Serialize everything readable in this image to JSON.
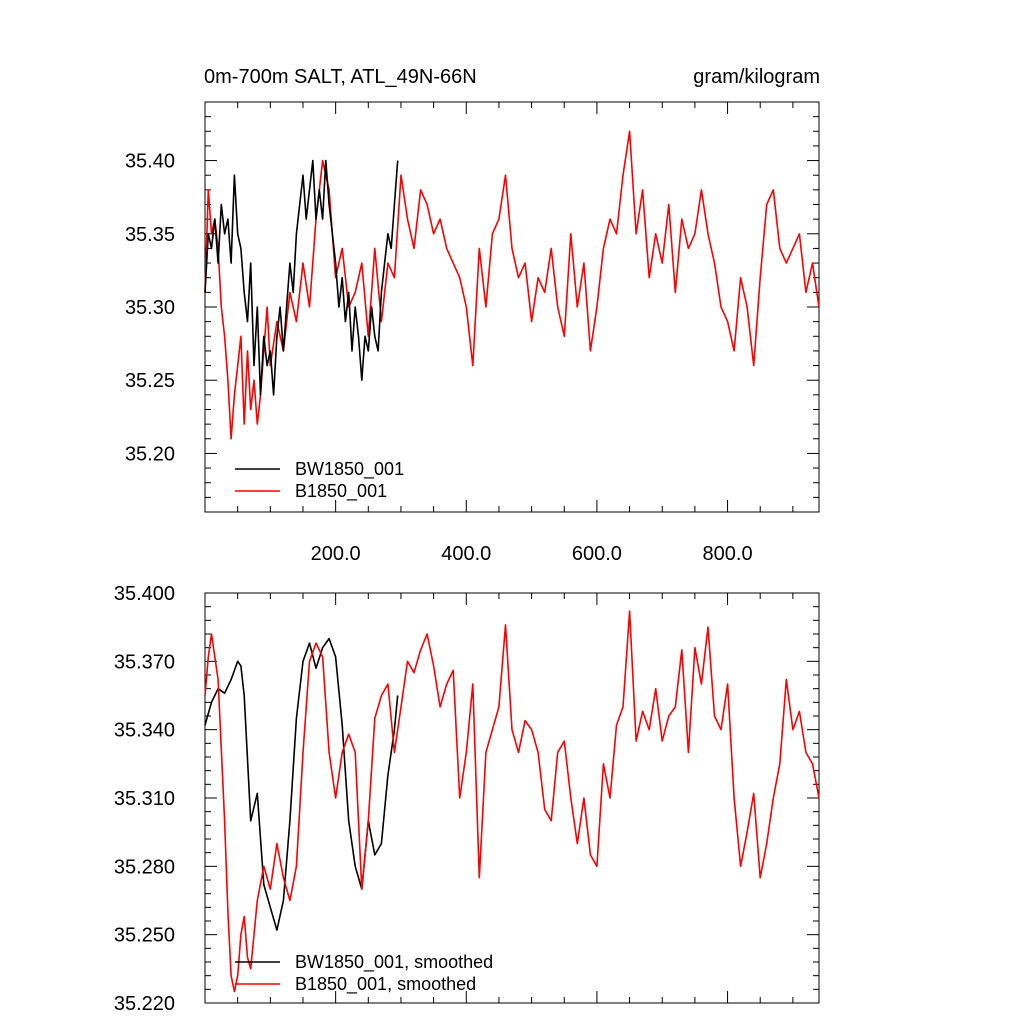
{
  "chart_data": [
    {
      "type": "line",
      "title_left": "0m-700m SALT, ATL_49N-66N",
      "title_right": "gram/kilogram",
      "xlim": [
        0,
        940
      ],
      "ylim": [
        35.16,
        35.44
      ],
      "x_ticks": [
        "200.0",
        "400.0",
        "600.0",
        "800.0"
      ],
      "x_tick_values": [
        200,
        400,
        600,
        800
      ],
      "y_ticks": [
        "35.20",
        "35.25",
        "35.30",
        "35.35",
        "35.40"
      ],
      "y_tick_values": [
        35.2,
        35.25,
        35.3,
        35.35,
        35.4
      ],
      "legend_position": "bottom-left",
      "series": [
        {
          "name": "BW1850_001",
          "color": "#000000",
          "x": [
            0,
            5,
            10,
            15,
            20,
            25,
            30,
            35,
            40,
            45,
            50,
            55,
            60,
            65,
            70,
            75,
            80,
            85,
            90,
            95,
            100,
            105,
            110,
            115,
            120,
            125,
            130,
            135,
            140,
            145,
            150,
            155,
            160,
            165,
            170,
            175,
            180,
            185,
            190,
            195,
            200,
            205,
            210,
            215,
            220,
            225,
            230,
            235,
            240,
            245,
            250,
            255,
            260,
            265,
            270,
            275,
            280,
            285,
            290,
            295
          ],
          "y": [
            35.31,
            35.35,
            35.34,
            35.36,
            35.33,
            35.37,
            35.35,
            35.36,
            35.33,
            35.39,
            35.35,
            35.34,
            35.31,
            35.29,
            35.33,
            35.26,
            35.3,
            35.24,
            35.28,
            35.26,
            35.27,
            35.24,
            35.28,
            35.3,
            35.27,
            35.3,
            35.33,
            35.31,
            35.35,
            35.37,
            35.39,
            35.36,
            35.38,
            35.4,
            35.36,
            35.38,
            35.36,
            35.4,
            35.37,
            35.35,
            35.33,
            35.3,
            35.32,
            35.29,
            35.31,
            35.27,
            35.3,
            35.28,
            35.25,
            35.28,
            35.27,
            35.3,
            35.28,
            35.27,
            35.31,
            35.33,
            35.35,
            35.34,
            35.37,
            35.4
          ]
        },
        {
          "name": "B1850_001",
          "color": "#ff0000",
          "x": [
            0,
            5,
            10,
            15,
            20,
            25,
            30,
            35,
            40,
            45,
            50,
            55,
            60,
            65,
            70,
            75,
            80,
            85,
            90,
            95,
            100,
            110,
            120,
            130,
            140,
            150,
            160,
            170,
            180,
            190,
            200,
            210,
            220,
            230,
            240,
            250,
            260,
            270,
            280,
            290,
            300,
            310,
            320,
            330,
            340,
            350,
            360,
            370,
            380,
            390,
            400,
            410,
            420,
            430,
            440,
            450,
            460,
            470,
            480,
            490,
            500,
            510,
            520,
            530,
            540,
            550,
            560,
            570,
            580,
            590,
            600,
            610,
            620,
            630,
            640,
            650,
            660,
            670,
            680,
            690,
            700,
            710,
            720,
            730,
            740,
            750,
            760,
            770,
            780,
            790,
            800,
            810,
            820,
            830,
            840,
            850,
            860,
            870,
            880,
            890,
            900,
            910,
            920,
            930,
            940
          ],
          "y": [
            35.31,
            35.38,
            35.35,
            35.36,
            35.34,
            35.3,
            35.28,
            35.25,
            35.21,
            35.24,
            35.26,
            35.28,
            35.22,
            35.27,
            35.23,
            35.25,
            35.22,
            35.24,
            35.27,
            35.3,
            35.26,
            35.29,
            35.27,
            35.31,
            35.29,
            35.33,
            35.3,
            35.36,
            35.4,
            35.38,
            35.32,
            35.34,
            35.3,
            35.31,
            35.33,
            35.28,
            35.34,
            35.29,
            35.33,
            35.32,
            35.39,
            35.36,
            35.34,
            35.38,
            35.37,
            35.35,
            35.36,
            35.34,
            35.33,
            35.32,
            35.3,
            35.26,
            35.34,
            35.3,
            35.35,
            35.36,
            35.39,
            35.34,
            35.32,
            35.33,
            35.29,
            35.32,
            35.31,
            35.34,
            35.3,
            35.28,
            35.35,
            35.3,
            35.33,
            35.27,
            35.3,
            35.34,
            35.36,
            35.35,
            35.39,
            35.42,
            35.35,
            35.38,
            35.32,
            35.35,
            35.33,
            35.37,
            35.31,
            35.36,
            35.34,
            35.35,
            35.38,
            35.35,
            35.33,
            35.3,
            35.29,
            35.27,
            35.32,
            35.3,
            35.26,
            35.32,
            35.37,
            35.38,
            35.34,
            35.33,
            35.34,
            35.35,
            35.31,
            35.33,
            35.3
          ]
        }
      ]
    },
    {
      "type": "line",
      "xlim": [
        0,
        940
      ],
      "ylim": [
        35.22,
        35.4
      ],
      "y_ticks": [
        "35.400",
        "35.370",
        "35.340",
        "35.310",
        "35.280",
        "35.250",
        "35.220"
      ],
      "y_tick_values": [
        35.4,
        35.37,
        35.34,
        35.31,
        35.28,
        35.25,
        35.22
      ],
      "legend_position": "bottom-left",
      "series": [
        {
          "name": "BW1850_001, smoothed",
          "color": "#000000",
          "x": [
            0,
            10,
            20,
            30,
            40,
            50,
            55,
            60,
            70,
            80,
            90,
            100,
            110,
            120,
            130,
            140,
            150,
            160,
            170,
            180,
            190,
            200,
            210,
            220,
            230,
            240,
            250,
            260,
            270,
            280,
            290,
            295
          ],
          "y": [
            35.342,
            35.352,
            35.358,
            35.356,
            35.362,
            35.37,
            35.368,
            35.355,
            35.3,
            35.312,
            35.272,
            35.262,
            35.252,
            35.265,
            35.3,
            35.345,
            35.37,
            35.378,
            35.367,
            35.376,
            35.38,
            35.372,
            35.342,
            35.3,
            35.28,
            35.27,
            35.3,
            35.285,
            35.29,
            35.32,
            35.34,
            35.355
          ]
        },
        {
          "name": "B1850_001, smoothed",
          "color": "#ff0000",
          "x": [
            0,
            5,
            10,
            20,
            30,
            35,
            40,
            45,
            50,
            55,
            60,
            65,
            70,
            80,
            90,
            100,
            110,
            120,
            130,
            140,
            150,
            160,
            170,
            180,
            190,
            200,
            210,
            220,
            230,
            240,
            250,
            260,
            270,
            280,
            290,
            300,
            310,
            320,
            330,
            340,
            350,
            360,
            370,
            380,
            390,
            400,
            410,
            420,
            430,
            440,
            450,
            460,
            470,
            480,
            490,
            500,
            510,
            520,
            530,
            540,
            550,
            560,
            570,
            580,
            590,
            600,
            610,
            620,
            630,
            640,
            650,
            660,
            670,
            680,
            690,
            700,
            710,
            720,
            730,
            740,
            750,
            760,
            770,
            780,
            790,
            800,
            810,
            820,
            830,
            840,
            850,
            860,
            870,
            880,
            890,
            900,
            910,
            920,
            930,
            940
          ],
          "y": [
            35.355,
            35.372,
            35.382,
            35.362,
            35.3,
            35.26,
            35.232,
            35.225,
            35.232,
            35.25,
            35.258,
            35.24,
            35.235,
            35.265,
            35.28,
            35.27,
            35.29,
            35.275,
            35.265,
            35.28,
            35.33,
            35.37,
            35.378,
            35.372,
            35.33,
            35.31,
            35.33,
            35.338,
            35.33,
            35.27,
            35.3,
            35.345,
            35.355,
            35.36,
            35.33,
            35.35,
            35.37,
            35.365,
            35.375,
            35.382,
            35.368,
            35.35,
            35.36,
            35.366,
            35.31,
            35.33,
            35.36,
            35.275,
            35.33,
            35.34,
            35.35,
            35.386,
            35.34,
            35.33,
            35.344,
            35.34,
            35.33,
            35.305,
            35.3,
            35.33,
            35.335,
            35.31,
            35.29,
            35.31,
            35.285,
            35.28,
            35.325,
            35.31,
            35.342,
            35.35,
            35.392,
            35.335,
            35.348,
            35.34,
            35.358,
            35.335,
            35.346,
            35.35,
            35.375,
            35.33,
            35.376,
            35.36,
            35.385,
            35.346,
            35.34,
            35.36,
            35.31,
            35.28,
            35.295,
            35.312,
            35.275,
            35.29,
            35.31,
            35.325,
            35.362,
            35.34,
            35.348,
            35.33,
            35.325,
            35.31
          ]
        }
      ]
    }
  ]
}
